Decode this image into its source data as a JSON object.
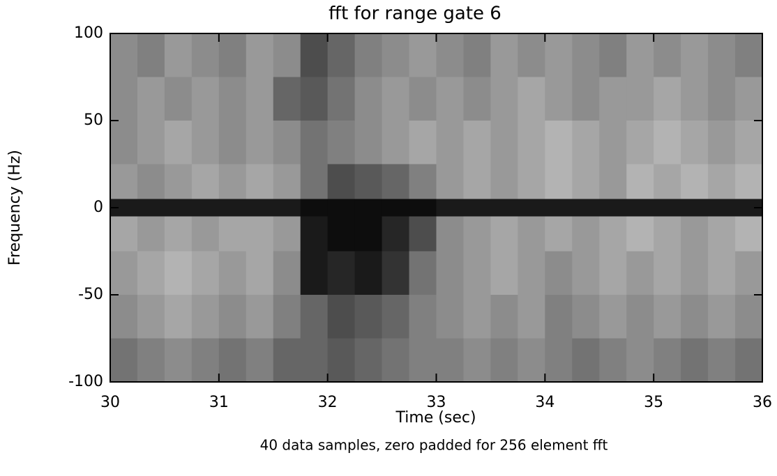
{
  "chart_data": {
    "type": "heatmap",
    "title": "fft for range gate  6",
    "x_label": "Time (sec)",
    "y_label": "Frequency (Hz)",
    "footnote": "40 data samples, zero padded for  256 element fft",
    "xbins": [
      30,
      30.25,
      30.5,
      30.75,
      31,
      31.25,
      31.5,
      31.75,
      32,
      32.25,
      32.5,
      32.75,
      33,
      33.25,
      33.5,
      33.75,
      34,
      34.25,
      34.5,
      34.75,
      35,
      35.25,
      35.5,
      35.75,
      36
    ],
    "ybins": [
      100,
      75,
      50,
      25,
      5,
      -5,
      -25,
      -50,
      -75,
      -100
    ],
    "values": [
      [
        0.45,
        0.5,
        0.4,
        0.45,
        0.5,
        0.4,
        0.45,
        0.7,
        0.6,
        0.5,
        0.45,
        0.4,
        0.45,
        0.5,
        0.4,
        0.45,
        0.4,
        0.45,
        0.5,
        0.4,
        0.45,
        0.4,
        0.45,
        0.5
      ],
      [
        0.45,
        0.4,
        0.45,
        0.4,
        0.45,
        0.4,
        0.6,
        0.65,
        0.55,
        0.45,
        0.4,
        0.45,
        0.4,
        0.45,
        0.4,
        0.35,
        0.4,
        0.45,
        0.4,
        0.4,
        0.35,
        0.4,
        0.45,
        0.4
      ],
      [
        0.45,
        0.4,
        0.35,
        0.4,
        0.45,
        0.4,
        0.45,
        0.55,
        0.5,
        0.45,
        0.4,
        0.35,
        0.4,
        0.35,
        0.4,
        0.35,
        0.3,
        0.35,
        0.4,
        0.35,
        0.3,
        0.35,
        0.4,
        0.35
      ],
      [
        0.4,
        0.45,
        0.4,
        0.35,
        0.4,
        0.35,
        0.4,
        0.55,
        0.7,
        0.65,
        0.6,
        0.5,
        0.4,
        0.35,
        0.4,
        0.35,
        0.3,
        0.35,
        0.4,
        0.3,
        0.35,
        0.3,
        0.35,
        0.3
      ],
      [
        0.9,
        0.9,
        0.9,
        0.9,
        0.9,
        0.9,
        0.9,
        0.95,
        0.95,
        0.95,
        0.95,
        0.95,
        0.9,
        0.9,
        0.9,
        0.9,
        0.9,
        0.9,
        0.9,
        0.9,
        0.9,
        0.9,
        0.9,
        0.9
      ],
      [
        0.35,
        0.4,
        0.35,
        0.4,
        0.35,
        0.35,
        0.4,
        0.9,
        0.95,
        0.95,
        0.85,
        0.7,
        0.45,
        0.4,
        0.35,
        0.4,
        0.35,
        0.4,
        0.35,
        0.3,
        0.35,
        0.4,
        0.35,
        0.3
      ],
      [
        0.4,
        0.35,
        0.3,
        0.35,
        0.4,
        0.35,
        0.45,
        0.9,
        0.85,
        0.9,
        0.8,
        0.55,
        0.45,
        0.4,
        0.35,
        0.4,
        0.45,
        0.4,
        0.35,
        0.4,
        0.35,
        0.4,
        0.35,
        0.4
      ],
      [
        0.45,
        0.4,
        0.35,
        0.4,
        0.45,
        0.4,
        0.5,
        0.6,
        0.7,
        0.65,
        0.6,
        0.5,
        0.45,
        0.4,
        0.45,
        0.4,
        0.5,
        0.45,
        0.4,
        0.45,
        0.4,
        0.45,
        0.4,
        0.45
      ],
      [
        0.55,
        0.5,
        0.45,
        0.5,
        0.55,
        0.5,
        0.6,
        0.6,
        0.65,
        0.6,
        0.55,
        0.5,
        0.5,
        0.45,
        0.5,
        0.45,
        0.5,
        0.55,
        0.5,
        0.45,
        0.5,
        0.55,
        0.5,
        0.55
      ]
    ],
    "color_scale": [
      "#ffffff",
      "#000000"
    ],
    "xlim": [
      30,
      36
    ],
    "xticks": [
      30,
      31,
      32,
      33,
      34,
      35,
      36
    ],
    "ylim": [
      -100,
      100
    ],
    "yticks": [
      -100,
      -50,
      0,
      50,
      100
    ]
  }
}
